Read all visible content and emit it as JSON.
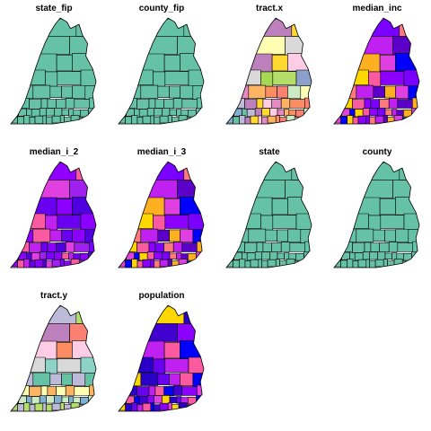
{
  "figure": {
    "type": "small-multiples choropleth map",
    "background": "#ffffff",
    "boundary_color": "#000000"
  },
  "panels": [
    {
      "title": "state_fip",
      "scheme": "single",
      "fill": "#66c2a5"
    },
    {
      "title": "county_fip",
      "scheme": "single",
      "fill": "#66c2a5"
    },
    {
      "title": "tract.x",
      "scheme": "pastel"
    },
    {
      "title": "median_inc",
      "scheme": "magma"
    },
    {
      "title": "median_i_2",
      "scheme": "violet"
    },
    {
      "title": "median_i_3",
      "scheme": "magma"
    },
    {
      "title": "state",
      "scheme": "single",
      "fill": "#66c2a5"
    },
    {
      "title": "county",
      "scheme": "single",
      "fill": "#66c2a5"
    },
    {
      "title": "tract.y",
      "scheme": "pastel2"
    },
    {
      "title": "population",
      "scheme": "blue"
    }
  ],
  "palettes": {
    "pastel": [
      "#66c2a5",
      "#fc8d62",
      "#8da0cb",
      "#e78ac3",
      "#a6d854",
      "#ffd92f",
      "#ffffb3",
      "#bebada",
      "#fb8072",
      "#80b1d3",
      "#fdb462",
      "#b3de69",
      "#fccde5",
      "#d9d9d9",
      "#bc80bd",
      "#ccebc5"
    ],
    "pastel2": [
      "#bebada",
      "#ffffb3",
      "#8dd3c7",
      "#fb8072",
      "#80b1d3",
      "#bebada",
      "#fccde5",
      "#b3de69",
      "#fdb462",
      "#d9d9d9",
      "#bc80bd",
      "#ccebc5",
      "#66c2a5",
      "#fc8d62"
    ],
    "magma": [
      "#8b00ff",
      "#c020f0",
      "#e040e0",
      "#fb5aa0",
      "#ff7a7a",
      "#ffb020",
      "#ffd700",
      "#7a00ff",
      "#5a00c8",
      "#0000ff"
    ],
    "violet": [
      "#8b00ff",
      "#7a00ff",
      "#6a00f0",
      "#a020f0",
      "#c020f0",
      "#e040e0",
      "#fb5aa0",
      "#5000e0",
      "#9000ff"
    ],
    "blue": [
      "#fb5aa0",
      "#e040e0",
      "#c020f0",
      "#8b00ff",
      "#6a00f0",
      "#4000d0",
      "#2a00c8",
      "#0000ff",
      "#ffd700"
    ]
  }
}
